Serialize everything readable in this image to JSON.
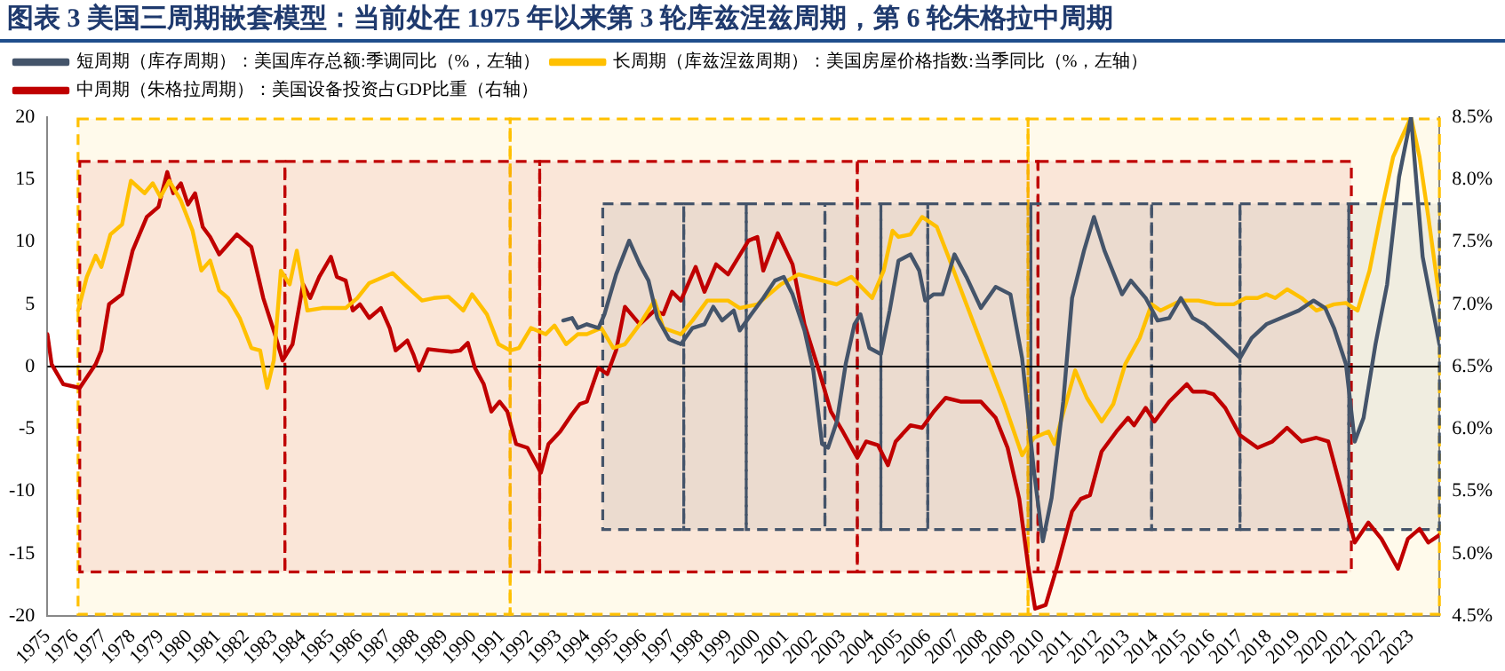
{
  "chart_data": {
    "type": "line",
    "title": "图表 3   美国三周期嵌套模型：当前处在 1975 年以来第 3 轮库兹涅兹周期，第 6 轮朱格拉中周期",
    "xlim": [
      1975,
      2024
    ],
    "xticks": [
      1975,
      1976,
      1977,
      1978,
      1979,
      1980,
      1981,
      1982,
      1983,
      1984,
      1985,
      1986,
      1987,
      1988,
      1989,
      1990,
      1991,
      1992,
      1993,
      1994,
      1995,
      1996,
      1997,
      1998,
      1999,
      2000,
      2001,
      2002,
      2003,
      2004,
      2005,
      2006,
      2007,
      2008,
      2009,
      2010,
      2011,
      2012,
      2013,
      2014,
      2015,
      2016,
      2017,
      2018,
      2019,
      2020,
      2021,
      2022,
      2023
    ],
    "ylim": [
      -20,
      20
    ],
    "yticks": [
      -20,
      -15,
      -10,
      -5,
      0,
      5,
      10,
      15,
      20
    ],
    "y2lim": [
      4.5,
      8.5
    ],
    "y2ticks": [
      {
        "value": 4.5,
        "label": "4.5%"
      },
      {
        "value": 5,
        "label": "5.0%"
      },
      {
        "value": 5.5,
        "label": "5.5%"
      },
      {
        "value": 6,
        "label": "6.0%"
      },
      {
        "value": 6.5,
        "label": "6.5%"
      },
      {
        "value": 7,
        "label": "7.0%"
      },
      {
        "value": 7.5,
        "label": "7.5%"
      },
      {
        "value": 8,
        "label": "8.0%"
      },
      {
        "value": 8.5,
        "label": "8.5%"
      }
    ],
    "legend": "top",
    "grid": false,
    "marker": "none",
    "line_style": "solid",
    "ref_lines": [
      {
        "axis": "y",
        "value": 0,
        "color": "#000000"
      }
    ],
    "bands": [
      {
        "axis": "x",
        "from": 1976.08,
        "to": 1991.29,
        "color": "#ffc000"
      },
      {
        "axis": "x",
        "from": 1991.29,
        "to": 2009.52,
        "color": "#ffc000"
      },
      {
        "axis": "x",
        "from": 2009.52,
        "to": 2024,
        "color": "#ffc000"
      },
      {
        "axis": "x",
        "from": 1976.14,
        "to": 1983.36,
        "color": "#c00000"
      },
      {
        "axis": "x",
        "from": 1983.36,
        "to": 1992.33,
        "color": "#c00000"
      },
      {
        "axis": "x",
        "from": 1992.33,
        "to": 2003.51,
        "color": "#c00000"
      },
      {
        "axis": "x",
        "from": 2003.51,
        "to": 2009.87,
        "color": "#c00000"
      },
      {
        "axis": "x",
        "from": 2009.87,
        "to": 2020.9,
        "color": "#c00000"
      },
      {
        "axis": "x",
        "from": 1994.55,
        "to": 1997.4,
        "color": "#44546a"
      },
      {
        "axis": "x",
        "from": 1997.4,
        "to": 1999.6,
        "color": "#44546a"
      },
      {
        "axis": "x",
        "from": 1999.6,
        "to": 2002.37,
        "color": "#44546a"
      },
      {
        "axis": "x",
        "from": 2002.37,
        "to": 2004.34,
        "color": "#44546a"
      },
      {
        "axis": "x",
        "from": 2004.34,
        "to": 2005.99,
        "color": "#44546a"
      },
      {
        "axis": "x",
        "from": 2005.99,
        "to": 2009.62,
        "color": "#44546a"
      },
      {
        "axis": "x",
        "from": 2009.62,
        "to": 2013.87,
        "color": "#44546a"
      },
      {
        "axis": "x",
        "from": 2013.87,
        "to": 2016.98,
        "color": "#44546a"
      },
      {
        "axis": "x",
        "from": 2016.98,
        "to": 2020.81,
        "color": "#44546a"
      },
      {
        "axis": "x",
        "from": 2020.81,
        "to": 2024,
        "color": "#44546a"
      }
    ],
    "series": [
      {
        "name": "短周期（库存周期）：美国库存总额:季调同比（%，左轴）",
        "color": "#44546a",
        "x": [
          1993.16,
          1993.47,
          1993.67,
          1993.99,
          1994.4,
          1994.61,
          1995.02,
          1995.48,
          1995.85,
          1996.16,
          1996.47,
          1996.89,
          1997.3,
          1997.71,
          1998.13,
          1998.44,
          1998.75,
          1999.16,
          1999.37,
          1999.78,
          2000.2,
          2000.61,
          2000.92,
          2001.23,
          2001.65,
          2001.96,
          2002.27,
          2002.48,
          2002.79,
          2003.1,
          2003.41,
          2003.62,
          2003.93,
          2004.34,
          2004.65,
          2004.96,
          2005.38,
          2005.69,
          2005.9,
          2006.2,
          2006.51,
          2006.93,
          2007.35,
          2007.86,
          2008.38,
          2008.9,
          2009.31,
          2009.73,
          2010.04,
          2010.35,
          2010.76,
          2011.07,
          2011.49,
          2011.84,
          2012.21,
          2012.83,
          2013.14,
          2013.66,
          2014.08,
          2014.49,
          2014.9,
          2015.32,
          2015.73,
          2016.35,
          2016.98,
          2017.39,
          2017.91,
          2018.43,
          2019.05,
          2019.57,
          2019.98,
          2020.29,
          2020.71,
          2021.02,
          2021.33,
          2021.75,
          2022.16,
          2022.58,
          2023.0,
          2023.41,
          2024.0
        ],
        "values": [
          3.7,
          3.9,
          3.1,
          3.4,
          3.1,
          4.2,
          7.4,
          10.1,
          8.2,
          6.9,
          3.9,
          2.2,
          1.8,
          3.1,
          3.4,
          4.8,
          3.7,
          4.5,
          2.9,
          4.2,
          5.5,
          6.9,
          7.2,
          5.8,
          2.9,
          -0.3,
          -6.2,
          -6.5,
          -4.4,
          0.2,
          3.4,
          4.2,
          1.5,
          1.0,
          4.5,
          8.5,
          9.0,
          7.7,
          5.3,
          5.8,
          5.8,
          9.0,
          7.2,
          4.7,
          6.4,
          5.8,
          0.7,
          -8.4,
          -14.0,
          -10.5,
          -2.8,
          5.5,
          9.3,
          12.0,
          9.3,
          5.8,
          6.9,
          5.5,
          3.7,
          3.9,
          5.5,
          3.9,
          3.4,
          2.1,
          0.7,
          2.3,
          3.4,
          3.9,
          4.5,
          5.3,
          4.7,
          3.1,
          0.2,
          -6.0,
          -4.1,
          1.8,
          6.6,
          15.2,
          20.0,
          8.8,
          1.8
        ]
      },
      {
        "name": "长周期（库兹涅兹周期）：美国房屋价格指数:当季同比（%，左轴）",
        "color": "#ffc000",
        "x": [
          1976.08,
          1976.39,
          1976.7,
          1976.9,
          1977.22,
          1977.63,
          1977.94,
          1978.42,
          1978.71,
          1978.98,
          1979.29,
          1979.7,
          1980.11,
          1980.42,
          1980.73,
          1981.05,
          1981.36,
          1981.77,
          1982.18,
          1982.49,
          1982.74,
          1982.97,
          1983.22,
          1983.53,
          1983.78,
          1984.15,
          1984.67,
          1985.5,
          1985.91,
          1986.33,
          1987.15,
          1987.57,
          1988.19,
          1988.6,
          1989.12,
          1989.64,
          1989.95,
          1990.47,
          1990.88,
          1991.29,
          1991.6,
          1992.02,
          1992.54,
          1992.85,
          1993.26,
          1993.67,
          1993.99,
          1994.5,
          1994.92,
          1995.33,
          1995.85,
          1996.37,
          1996.68,
          1997.3,
          1997.71,
          1998.23,
          1998.96,
          1999.37,
          1999.99,
          2000.82,
          2001.44,
          2002.27,
          2002.78,
          2003.3,
          2004.03,
          2004.44,
          2004.75,
          2004.96,
          2005.38,
          2005.79,
          2006.31,
          2006.72,
          2007.35,
          2008.07,
          2008.69,
          2009.31,
          2009.73,
          2010.24,
          2010.45,
          2010.97,
          2011.18,
          2011.59,
          2012.11,
          2012.52,
          2012.94,
          2013.45,
          2013.87,
          2014.18,
          2014.9,
          2015.52,
          2016.14,
          2016.76,
          2017.18,
          2017.6,
          2017.91,
          2018.22,
          2018.64,
          2019.15,
          2019.67,
          2020.29,
          2020.71,
          2021.12,
          2021.54,
          2021.96,
          2022.37,
          2022.68,
          2023.0,
          2023.3,
          2023.61,
          2024.0
        ],
        "values": [
          4.5,
          7.2,
          8.9,
          8.0,
          10.6,
          11.4,
          14.9,
          13.9,
          14.7,
          13.6,
          14.9,
          13.3,
          10.9,
          7.7,
          8.5,
          6.1,
          5.5,
          3.9,
          1.5,
          1.3,
          -1.7,
          0.5,
          7.7,
          6.6,
          9.3,
          4.5,
          4.7,
          4.7,
          5.5,
          6.7,
          7.5,
          6.6,
          5.3,
          5.5,
          5.6,
          4.5,
          5.8,
          4.2,
          1.8,
          1.3,
          1.5,
          3.1,
          2.6,
          3.3,
          1.8,
          2.6,
          2.6,
          3.1,
          1.5,
          1.8,
          3.4,
          5.3,
          3.1,
          2.6,
          3.7,
          5.3,
          5.3,
          4.7,
          5.0,
          6.6,
          7.4,
          6.9,
          6.6,
          7.2,
          5.5,
          7.7,
          10.9,
          10.4,
          10.6,
          12.0,
          11.2,
          8.8,
          5.0,
          0.7,
          -3.0,
          -7.1,
          -5.7,
          -5.2,
          -6.2,
          -2.0,
          -0.3,
          -2.5,
          -4.4,
          -3.0,
          0.2,
          2.3,
          5.0,
          4.5,
          5.3,
          5.3,
          5.0,
          5.0,
          5.5,
          5.5,
          5.8,
          5.5,
          6.2,
          5.5,
          4.5,
          5.0,
          5.1,
          4.5,
          7.7,
          12.5,
          16.8,
          18.4,
          20.0,
          16.8,
          12.0,
          5.5
        ]
      },
      {
        "name": "中周期（朱格拉周期）：美国设备投资占GDP比重（右轴）",
        "color": "#c00000",
        "axis": "y2",
        "x": [
          1975.0,
          1975.15,
          1975.56,
          1976.14,
          1976.7,
          1976.9,
          1977.17,
          1977.63,
          1978.0,
          1978.5,
          1978.91,
          1979.22,
          1979.43,
          1979.7,
          1979.95,
          1980.2,
          1980.47,
          1980.73,
          1981.05,
          1981.67,
          1982.18,
          1982.6,
          1983.01,
          1983.28,
          1983.63,
          1984.0,
          1984.25,
          1984.57,
          1984.98,
          1985.19,
          1985.5,
          1985.75,
          1986.0,
          1986.33,
          1986.74,
          1987.05,
          1987.26,
          1987.67,
          1987.88,
          1988.08,
          1988.4,
          1988.8,
          1989.22,
          1989.53,
          1989.8,
          1990.05,
          1990.36,
          1990.63,
          1990.92,
          1991.19,
          1991.5,
          1991.9,
          1992.37,
          1992.64,
          1993.05,
          1993.47,
          1993.74,
          1993.99,
          1994.4,
          1994.71,
          1995.02,
          1995.33,
          1995.85,
          1996.37,
          1996.68,
          1996.99,
          1997.3,
          1997.82,
          1998.13,
          1998.54,
          1998.96,
          1999.68,
          1999.99,
          2000.2,
          2000.71,
          2001.23,
          2001.65,
          2002.17,
          2002.58,
          2003.0,
          2003.51,
          2003.82,
          2004.24,
          2004.59,
          2004.86,
          2005.38,
          2005.79,
          2006.2,
          2006.62,
          2007.14,
          2007.86,
          2008.38,
          2008.8,
          2009.21,
          2009.52,
          2009.77,
          2010.14,
          2010.56,
          2011.07,
          2011.38,
          2011.7,
          2012.11,
          2012.63,
          2013.04,
          2013.25,
          2013.66,
          2013.97,
          2014.49,
          2015.11,
          2015.32,
          2015.73,
          2016.04,
          2016.46,
          2016.98,
          2017.6,
          2018.12,
          2018.64,
          2019.15,
          2019.67,
          2020.09,
          2020.5,
          2021.02,
          2021.5,
          2021.96,
          2022.54,
          2022.89,
          2023.3,
          2023.61,
          2024.0
        ],
        "values": [
          6.76,
          6.52,
          6.36,
          6.33,
          6.52,
          6.63,
          7.0,
          7.08,
          7.43,
          7.7,
          7.78,
          8.06,
          7.89,
          7.97,
          7.8,
          7.89,
          7.62,
          7.54,
          7.4,
          7.56,
          7.46,
          7.05,
          6.76,
          6.55,
          6.68,
          7.16,
          7.05,
          7.22,
          7.38,
          7.22,
          7.19,
          6.95,
          7.0,
          6.89,
          6.97,
          6.81,
          6.63,
          6.71,
          6.6,
          6.47,
          6.64,
          6.63,
          6.62,
          6.63,
          6.69,
          6.49,
          6.36,
          6.14,
          6.22,
          6.14,
          5.88,
          5.85,
          5.65,
          5.88,
          5.98,
          6.12,
          6.2,
          6.22,
          6.49,
          6.44,
          6.63,
          6.98,
          6.84,
          6.95,
          6.92,
          7.1,
          7.03,
          7.3,
          7.1,
          7.32,
          7.24,
          7.51,
          7.54,
          7.27,
          7.57,
          7.32,
          6.84,
          6.46,
          6.14,
          5.98,
          5.77,
          5.9,
          5.87,
          5.71,
          5.9,
          6.03,
          6.01,
          6.14,
          6.25,
          6.22,
          6.22,
          6.09,
          5.85,
          5.44,
          4.91,
          4.56,
          4.59,
          4.91,
          5.34,
          5.44,
          5.47,
          5.82,
          5.98,
          6.09,
          6.03,
          6.17,
          6.06,
          6.22,
          6.36,
          6.3,
          6.3,
          6.28,
          6.17,
          5.95,
          5.85,
          5.9,
          6.01,
          5.9,
          5.93,
          5.9,
          5.55,
          5.09,
          5.25,
          5.12,
          4.88,
          5.12,
          5.2,
          5.09,
          5.15
        ]
      }
    ]
  }
}
